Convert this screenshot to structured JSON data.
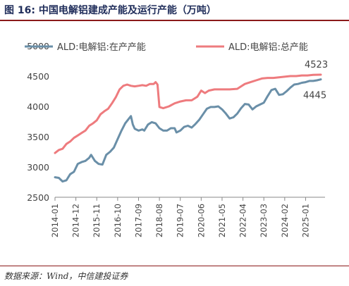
{
  "figure": {
    "title": "图 16: 中国电解铝建成产能及运行产能（万吨）",
    "source": "数据来源：Wind，中信建投证券"
  },
  "chart_data": {
    "type": "line",
    "title": "",
    "xlabel": "",
    "ylabel": "",
    "ylim": [
      2500,
      5000
    ],
    "yticks": [
      2500,
      3000,
      3500,
      4000,
      4500,
      5000
    ],
    "x_range": [
      "2014-01",
      "2025-09"
    ],
    "xticks": [
      "2014-01",
      "2014-12",
      "2015-11",
      "2016-10",
      "2017-09",
      "2018-08",
      "2019-07",
      "2020-06",
      "2021-05",
      "2022-04",
      "2023-03",
      "2024-02",
      "2025-01"
    ],
    "legend_position": "top",
    "grid": false,
    "series": [
      {
        "name": "ALD:电解铝:在产产能",
        "color": "#6a8fa8",
        "end_label": "4445",
        "points": [
          [
            "2014-01",
            2830
          ],
          [
            "2014-03",
            2820
          ],
          [
            "2014-05",
            2760
          ],
          [
            "2014-07",
            2780
          ],
          [
            "2014-09",
            2880
          ],
          [
            "2014-11",
            2920
          ],
          [
            "2015-01",
            3050
          ],
          [
            "2015-03",
            3080
          ],
          [
            "2015-05",
            3100
          ],
          [
            "2015-07",
            3150
          ],
          [
            "2015-08",
            3200
          ],
          [
            "2015-10",
            3100
          ],
          [
            "2015-12",
            3050
          ],
          [
            "2016-02",
            3040
          ],
          [
            "2016-04",
            3200
          ],
          [
            "2016-06",
            3250
          ],
          [
            "2016-08",
            3320
          ],
          [
            "2016-10",
            3460
          ],
          [
            "2016-12",
            3600
          ],
          [
            "2017-02",
            3720
          ],
          [
            "2017-04",
            3800
          ],
          [
            "2017-05",
            3840
          ],
          [
            "2017-06",
            3700
          ],
          [
            "2017-07",
            3630
          ],
          [
            "2017-09",
            3600
          ],
          [
            "2017-11",
            3620
          ],
          [
            "2017-12",
            3600
          ],
          [
            "2018-02",
            3700
          ],
          [
            "2018-04",
            3740
          ],
          [
            "2018-06",
            3720
          ],
          [
            "2018-08",
            3640
          ],
          [
            "2018-10",
            3600
          ],
          [
            "2018-12",
            3600
          ],
          [
            "2019-02",
            3640
          ],
          [
            "2019-04",
            3640
          ],
          [
            "2019-05",
            3570
          ],
          [
            "2019-07",
            3600
          ],
          [
            "2019-09",
            3660
          ],
          [
            "2019-11",
            3680
          ],
          [
            "2020-01",
            3650
          ],
          [
            "2020-03",
            3710
          ],
          [
            "2020-05",
            3780
          ],
          [
            "2020-07",
            3870
          ],
          [
            "2020-09",
            3960
          ],
          [
            "2020-11",
            3990
          ],
          [
            "2021-01",
            3990
          ],
          [
            "2021-03",
            4000
          ],
          [
            "2021-05",
            3950
          ],
          [
            "2021-07",
            3880
          ],
          [
            "2021-09",
            3800
          ],
          [
            "2021-11",
            3820
          ],
          [
            "2022-01",
            3880
          ],
          [
            "2022-03",
            3970
          ],
          [
            "2022-05",
            4040
          ],
          [
            "2022-07",
            4030
          ],
          [
            "2022-09",
            3950
          ],
          [
            "2022-11",
            4000
          ],
          [
            "2023-01",
            4030
          ],
          [
            "2023-03",
            4060
          ],
          [
            "2023-05",
            4170
          ],
          [
            "2023-07",
            4270
          ],
          [
            "2023-09",
            4290
          ],
          [
            "2023-11",
            4190
          ],
          [
            "2024-01",
            4200
          ],
          [
            "2024-03",
            4250
          ],
          [
            "2024-05",
            4310
          ],
          [
            "2024-07",
            4360
          ],
          [
            "2024-09",
            4370
          ],
          [
            "2024-11",
            4390
          ],
          [
            "2025-01",
            4400
          ],
          [
            "2025-03",
            4420
          ],
          [
            "2025-05",
            4420
          ],
          [
            "2025-07",
            4430
          ],
          [
            "2025-09",
            4445
          ]
        ]
      },
      {
        "name": "ALD:电解铝:总产能",
        "color": "#ee7b7e",
        "end_label": "4523",
        "points": [
          [
            "2014-01",
            3230
          ],
          [
            "2014-03",
            3280
          ],
          [
            "2014-05",
            3300
          ],
          [
            "2014-07",
            3380
          ],
          [
            "2014-09",
            3420
          ],
          [
            "2014-11",
            3480
          ],
          [
            "2015-01",
            3520
          ],
          [
            "2015-03",
            3560
          ],
          [
            "2015-05",
            3600
          ],
          [
            "2015-07",
            3680
          ],
          [
            "2015-09",
            3720
          ],
          [
            "2015-11",
            3770
          ],
          [
            "2016-01",
            3870
          ],
          [
            "2016-03",
            3920
          ],
          [
            "2016-05",
            3960
          ],
          [
            "2016-07",
            4050
          ],
          [
            "2016-09",
            4150
          ],
          [
            "2016-11",
            4280
          ],
          [
            "2017-01",
            4340
          ],
          [
            "2017-03",
            4360
          ],
          [
            "2017-05",
            4340
          ],
          [
            "2017-07",
            4330
          ],
          [
            "2017-09",
            4340
          ],
          [
            "2017-11",
            4350
          ],
          [
            "2018-01",
            4340
          ],
          [
            "2018-03",
            4370
          ],
          [
            "2018-05",
            4370
          ],
          [
            "2018-06",
            4400
          ],
          [
            "2018-07",
            4360
          ],
          [
            "2018-08",
            3990
          ],
          [
            "2018-10",
            3970
          ],
          [
            "2019-01",
            4000
          ],
          [
            "2019-04",
            4050
          ],
          [
            "2019-07",
            4080
          ],
          [
            "2019-10",
            4100
          ],
          [
            "2020-01",
            4100
          ],
          [
            "2020-04",
            4160
          ],
          [
            "2020-06",
            4260
          ],
          [
            "2020-08",
            4220
          ],
          [
            "2020-10",
            4260
          ],
          [
            "2021-01",
            4280
          ],
          [
            "2021-05",
            4280
          ],
          [
            "2021-09",
            4280
          ],
          [
            "2022-01",
            4290
          ],
          [
            "2022-03",
            4330
          ],
          [
            "2022-05",
            4370
          ],
          [
            "2022-08",
            4400
          ],
          [
            "2022-11",
            4430
          ],
          [
            "2023-02",
            4460
          ],
          [
            "2023-05",
            4470
          ],
          [
            "2023-08",
            4470
          ],
          [
            "2023-11",
            4480
          ],
          [
            "2024-02",
            4490
          ],
          [
            "2024-05",
            4500
          ],
          [
            "2024-08",
            4500
          ],
          [
            "2024-11",
            4510
          ],
          [
            "2025-02",
            4510
          ],
          [
            "2025-05",
            4520
          ],
          [
            "2025-09",
            4523
          ]
        ]
      }
    ]
  }
}
